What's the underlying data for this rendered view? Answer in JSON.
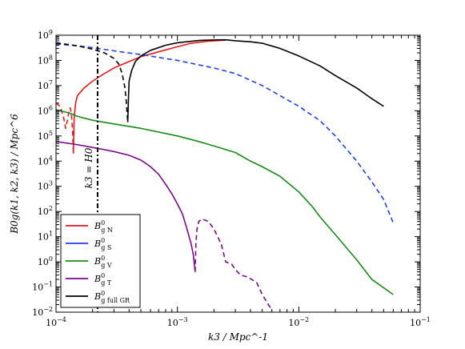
{
  "chart_data": {
    "type": "line",
    "title": "",
    "xlabel": "k3 / Mpc^-1",
    "ylabel": "B0g(k1, k2, k3) / Mpc^6",
    "xscale": "log",
    "yscale": "log",
    "xlim": [
      0.0001,
      0.1
    ],
    "ylim": [
      0.01,
      1000000000
    ],
    "grid": false,
    "legend_position": "bottom-left",
    "x_ticks": [
      {
        "base": "10",
        "exp": "−4",
        "value": 0.0001
      },
      {
        "base": "10",
        "exp": "−3",
        "value": 0.001
      },
      {
        "base": "10",
        "exp": "−2",
        "value": 0.01
      },
      {
        "base": "10",
        "exp": "−1",
        "value": 0.1
      }
    ],
    "y_ticks": [
      {
        "base": "10",
        "exp": "−2",
        "value": 0.01
      },
      {
        "base": "10",
        "exp": "−1",
        "value": 0.1
      },
      {
        "base": "10",
        "exp": "0",
        "value": 1
      },
      {
        "base": "10",
        "exp": "1",
        "value": 10
      },
      {
        "base": "10",
        "exp": "2",
        "value": 100
      },
      {
        "base": "10",
        "exp": "3",
        "value": 1000
      },
      {
        "base": "10",
        "exp": "4",
        "value": 10000
      },
      {
        "base": "10",
        "exp": "5",
        "value": 100000
      },
      {
        "base": "10",
        "exp": "6",
        "value": 1000000
      },
      {
        "base": "10",
        "exp": "7",
        "value": 10000000
      },
      {
        "base": "10",
        "exp": "8",
        "value": 100000000
      },
      {
        "base": "10",
        "exp": "9",
        "value": 1000000000
      }
    ],
    "annotations": [
      {
        "text": "k3 = H0",
        "x": 0.00022,
        "style": "dash-dot vertical line"
      }
    ],
    "series": [
      {
        "name": "B0g N",
        "legend_base": "B",
        "legend_sup": "0",
        "legend_sub": "g N",
        "color": "#e41a1c",
        "segments": [
          {
            "style": "dashed",
            "points": [
              [
                0.0001,
                2000000
              ],
              [
                0.000108,
                1500000
              ],
              [
                0.000115,
                600000
              ],
              [
                0.00012,
                200000
              ],
              [
                0.000124,
                400000
              ],
              [
                0.000128,
                1000000
              ],
              [
                0.000131,
                1300000
              ],
              [
                0.000134,
                700000
              ],
              [
                0.000137,
                150000
              ],
              [
                0.000139,
                20000
              ]
            ]
          },
          {
            "style": "solid",
            "points": [
              [
                0.000139,
                20000
              ],
              [
                0.000141,
                500000
              ],
              [
                0.000145,
                2000000
              ],
              [
                0.00015,
                4000000
              ],
              [
                0.00017,
                8000000
              ],
              [
                0.0002,
                15000000
              ],
              [
                0.00025,
                30000000
              ],
              [
                0.0003,
                50000000
              ],
              [
                0.0004,
                90000000
              ],
              [
                0.0005,
                140000000
              ],
              [
                0.0007,
                220000000
              ],
              [
                0.001,
                350000000
              ],
              [
                0.0013,
                480000000
              ],
              [
                0.0018,
                580000000
              ],
              [
                0.0025,
                640000000
              ]
            ]
          }
        ]
      },
      {
        "name": "B0g S",
        "legend_base": "B",
        "legend_sup": "0",
        "legend_sub": "g S",
        "color": "#1f3fe0",
        "segments": [
          {
            "style": "dashed",
            "points": [
              [
                0.0001,
                450000000
              ],
              [
                0.00015,
                380000000
              ],
              [
                0.0002,
                320000000
              ],
              [
                0.0003,
                240000000
              ],
              [
                0.0005,
                170000000
              ],
              [
                0.001,
                100000000
              ],
              [
                0.002,
                50000000
              ],
              [
                0.003,
                30000000
              ],
              [
                0.005,
                10000000
              ],
              [
                0.007,
                4000000
              ],
              [
                0.01,
                1500000
              ],
              [
                0.015,
                400000
              ],
              [
                0.02,
                100000
              ],
              [
                0.03,
                10000
              ],
              [
                0.04,
                1500
              ],
              [
                0.05,
                300
              ],
              [
                0.06,
                35
              ]
            ]
          }
        ]
      },
      {
        "name": "B0g V",
        "legend_base": "B",
        "legend_sup": "0",
        "legend_sub": "g V",
        "color": "#1a8a1a",
        "segments": [
          {
            "style": "solid",
            "points": [
              [
                0.0001,
                1100000
              ],
              [
                0.00013,
                800000
              ],
              [
                0.00015,
                600000
              ],
              [
                0.0002,
                420000
              ],
              [
                0.0003,
                300000
              ],
              [
                0.0005,
                200000
              ],
              [
                0.001,
                100000
              ],
              [
                0.0015,
                60000
              ],
              [
                0.002,
                40000
              ],
              [
                0.003,
                22000
              ],
              [
                0.004,
                10000
              ],
              [
                0.005,
                6000
              ],
              [
                0.007,
                2500
              ],
              [
                0.01,
                600
              ],
              [
                0.013,
                150
              ],
              [
                0.015,
                60
              ],
              [
                0.02,
                12
              ],
              [
                0.03,
                1.2
              ],
              [
                0.04,
                0.2
              ],
              [
                0.06,
                0.05
              ]
            ]
          }
        ]
      },
      {
        "name": "B0g T",
        "legend_base": "B",
        "legend_sup": "0",
        "legend_sub": "g T",
        "color": "#7a0a8a",
        "segments": [
          {
            "style": "solid",
            "points": [
              [
                0.0001,
                60000
              ],
              [
                0.00015,
                45000
              ],
              [
                0.0002,
                35000
              ],
              [
                0.0003,
                24000
              ],
              [
                0.0004,
                17000
              ],
              [
                0.0005,
                11000
              ],
              [
                0.0006,
                6000
              ],
              [
                0.0007,
                3000
              ],
              [
                0.0008,
                1200
              ],
              [
                0.0009,
                500
              ],
              [
                0.001,
                200
              ],
              [
                0.0011,
                80
              ],
              [
                0.0012,
                20
              ],
              [
                0.0013,
                5
              ],
              [
                0.00135,
                2
              ],
              [
                0.0014,
                0.4
              ]
            ]
          },
          {
            "style": "dashed",
            "points": [
              [
                0.0014,
                0.4
              ],
              [
                0.00142,
                5
              ],
              [
                0.00145,
                20
              ],
              [
                0.0015,
                40
              ],
              [
                0.0016,
                50
              ],
              [
                0.0018,
                40
              ],
              [
                0.002,
                20
              ],
              [
                0.0023,
                5
              ],
              [
                0.0025,
                1
              ],
              [
                0.0028,
                0.8
              ],
              [
                0.003,
                0.5
              ],
              [
                0.0033,
                0.3
              ],
              [
                0.0038,
                0.25
              ],
              [
                0.0045,
                0.15
              ],
              [
                0.005,
                0.05
              ],
              [
                0.006,
                0.012
              ]
            ]
          }
        ]
      },
      {
        "name": "B0g full GR",
        "legend_base": "B",
        "legend_sup": "0",
        "legend_sub": "g full GR",
        "color": "#000000",
        "segments": [
          {
            "style": "dashed",
            "points": [
              [
                0.0001,
                500000000
              ],
              [
                0.00015,
                380000000
              ],
              [
                0.0002,
                280000000
              ],
              [
                0.00025,
                200000000
              ],
              [
                0.0003,
                120000000
              ],
              [
                0.00033,
                70000000
              ],
              [
                0.00035,
                30000000
              ],
              [
                0.00037,
                8000000
              ],
              [
                0.00038,
                2000000
              ],
              [
                0.00039,
                350000
              ]
            ]
          },
          {
            "style": "solid",
            "points": [
              [
                0.00039,
                350000
              ],
              [
                0.000395,
                3000000
              ],
              [
                0.0004,
                15000000
              ],
              [
                0.00042,
                40000000
              ],
              [
                0.00045,
                90000000
              ],
              [
                0.0005,
                150000000
              ],
              [
                0.0006,
                250000000
              ],
              [
                0.0008,
                400000000
              ],
              [
                0.001,
                500000000
              ],
              [
                0.0015,
                620000000
              ],
              [
                0.002,
                650000000
              ],
              [
                0.0025,
                660000000
              ],
              [
                0.003,
                600000000
              ],
              [
                0.004,
                550000000
              ],
              [
                0.005,
                480000000
              ],
              [
                0.007,
                300000000
              ],
              [
                0.01,
                150000000
              ],
              [
                0.015,
                60000000
              ],
              [
                0.02,
                25000000
              ],
              [
                0.03,
                8000000
              ],
              [
                0.04,
                3000000
              ],
              [
                0.05,
                1500000
              ]
            ]
          }
        ]
      }
    ]
  }
}
